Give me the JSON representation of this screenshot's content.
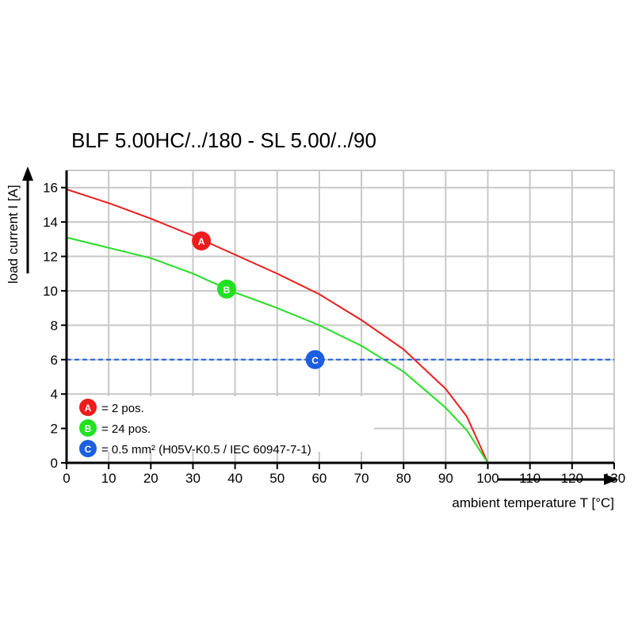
{
  "chart_data": {
    "type": "line",
    "title": "BLF 5.00HC/../180 - SL 5.00/../90",
    "xlabel": "ambient temperature T [°C]",
    "ylabel": "load current I [A]",
    "xlim": [
      0,
      130
    ],
    "ylim": [
      0,
      17
    ],
    "xticks": [
      0,
      10,
      20,
      30,
      40,
      50,
      60,
      70,
      80,
      90,
      100,
      110,
      120,
      130
    ],
    "yticks": [
      0,
      2,
      4,
      6,
      8,
      10,
      12,
      14,
      16
    ],
    "grid": true,
    "legend_position": "bottom-left",
    "series": [
      {
        "marker": "A",
        "color": "#ee1c1c",
        "legend": "= 2 pos.",
        "x": [
          0,
          10,
          20,
          30,
          40,
          50,
          60,
          70,
          80,
          90,
          95,
          100
        ],
        "y": [
          15.9,
          15.1,
          14.2,
          13.2,
          12.1,
          11.0,
          9.8,
          8.3,
          6.6,
          4.3,
          2.7,
          0
        ]
      },
      {
        "marker": "B",
        "color": "#22e022",
        "legend": "= 24 pos.",
        "x": [
          0,
          10,
          20,
          30,
          40,
          50,
          60,
          70,
          80,
          90,
          95,
          100
        ],
        "y": [
          13.1,
          12.5,
          11.9,
          11.0,
          9.9,
          9.0,
          8.0,
          6.8,
          5.3,
          3.2,
          1.9,
          0
        ]
      },
      {
        "marker": "C",
        "color": "#1c5fe0",
        "legend": "= 0.5 mm² (H05V-K0.5 / IEC 60947-7-1)",
        "dashed": true,
        "x": [
          0,
          130
        ],
        "y": [
          6,
          6
        ]
      }
    ],
    "marker_positions": {
      "A": [
        32,
        12.9
      ],
      "B": [
        38,
        10.1
      ],
      "C": [
        59,
        6
      ]
    }
  }
}
